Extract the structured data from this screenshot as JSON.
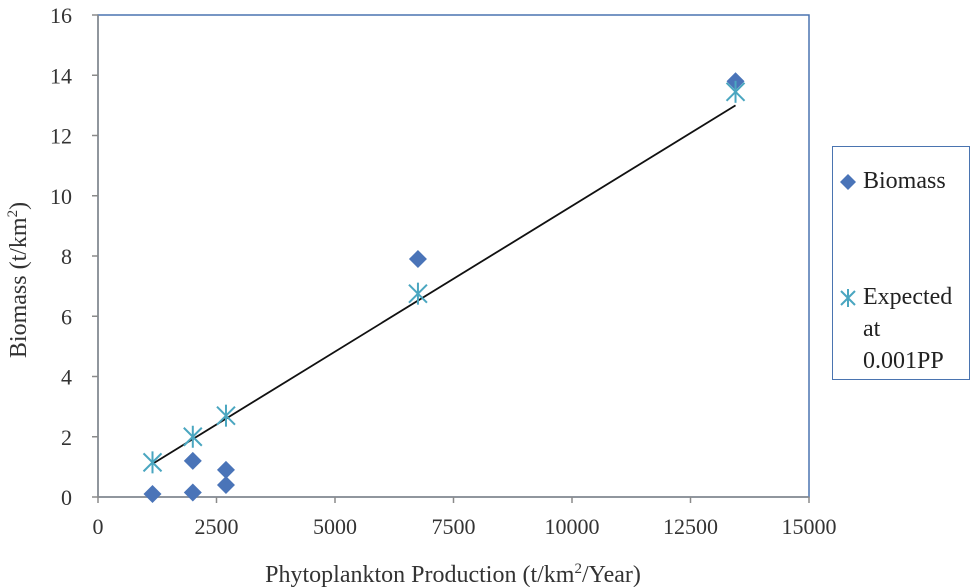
{
  "chart_data": {
    "type": "scatter",
    "title": "",
    "xlabel": {
      "pre": "Phytoplankton Production (t/km",
      "sup": "2",
      "post": "/Year)"
    },
    "ylabel": {
      "pre": "Biomass (t/km",
      "sup": "2",
      "post": ")"
    },
    "xlim": [
      0,
      15000
    ],
    "ylim": [
      0,
      16
    ],
    "x_ticks": [
      "0",
      "2500",
      "5000",
      "7500",
      "10000",
      "12500",
      "15000"
    ],
    "y_ticks": [
      "0",
      "2",
      "4",
      "6",
      "8",
      "10",
      "12",
      "14",
      "16"
    ],
    "grid": false,
    "legend_position": "right",
    "series": [
      {
        "name": "Biomass",
        "marker": "diamond",
        "color": "#4a74b8",
        "points": [
          {
            "x": 1150,
            "y": 0.1
          },
          {
            "x": 2000,
            "y": 0.15
          },
          {
            "x": 2000,
            "y": 1.2
          },
          {
            "x": 2700,
            "y": 0.4
          },
          {
            "x": 2700,
            "y": 0.9
          },
          {
            "x": 6750,
            "y": 7.9
          },
          {
            "x": 13450,
            "y": 13.8
          }
        ]
      },
      {
        "name": "Expected\nat\n0.001PP",
        "marker": "asterisk",
        "color": "#4aa6c0",
        "points": [
          {
            "x": 1150,
            "y": 1.15
          },
          {
            "x": 2000,
            "y": 2.0
          },
          {
            "x": 2700,
            "y": 2.7
          },
          {
            "x": 6750,
            "y": 6.75
          },
          {
            "x": 13450,
            "y": 13.45
          }
        ]
      }
    ],
    "trendline": {
      "color": "#111111",
      "from": {
        "x": 1150,
        "y": 1.1
      },
      "to": {
        "x": 13450,
        "y": 13.0
      }
    }
  }
}
